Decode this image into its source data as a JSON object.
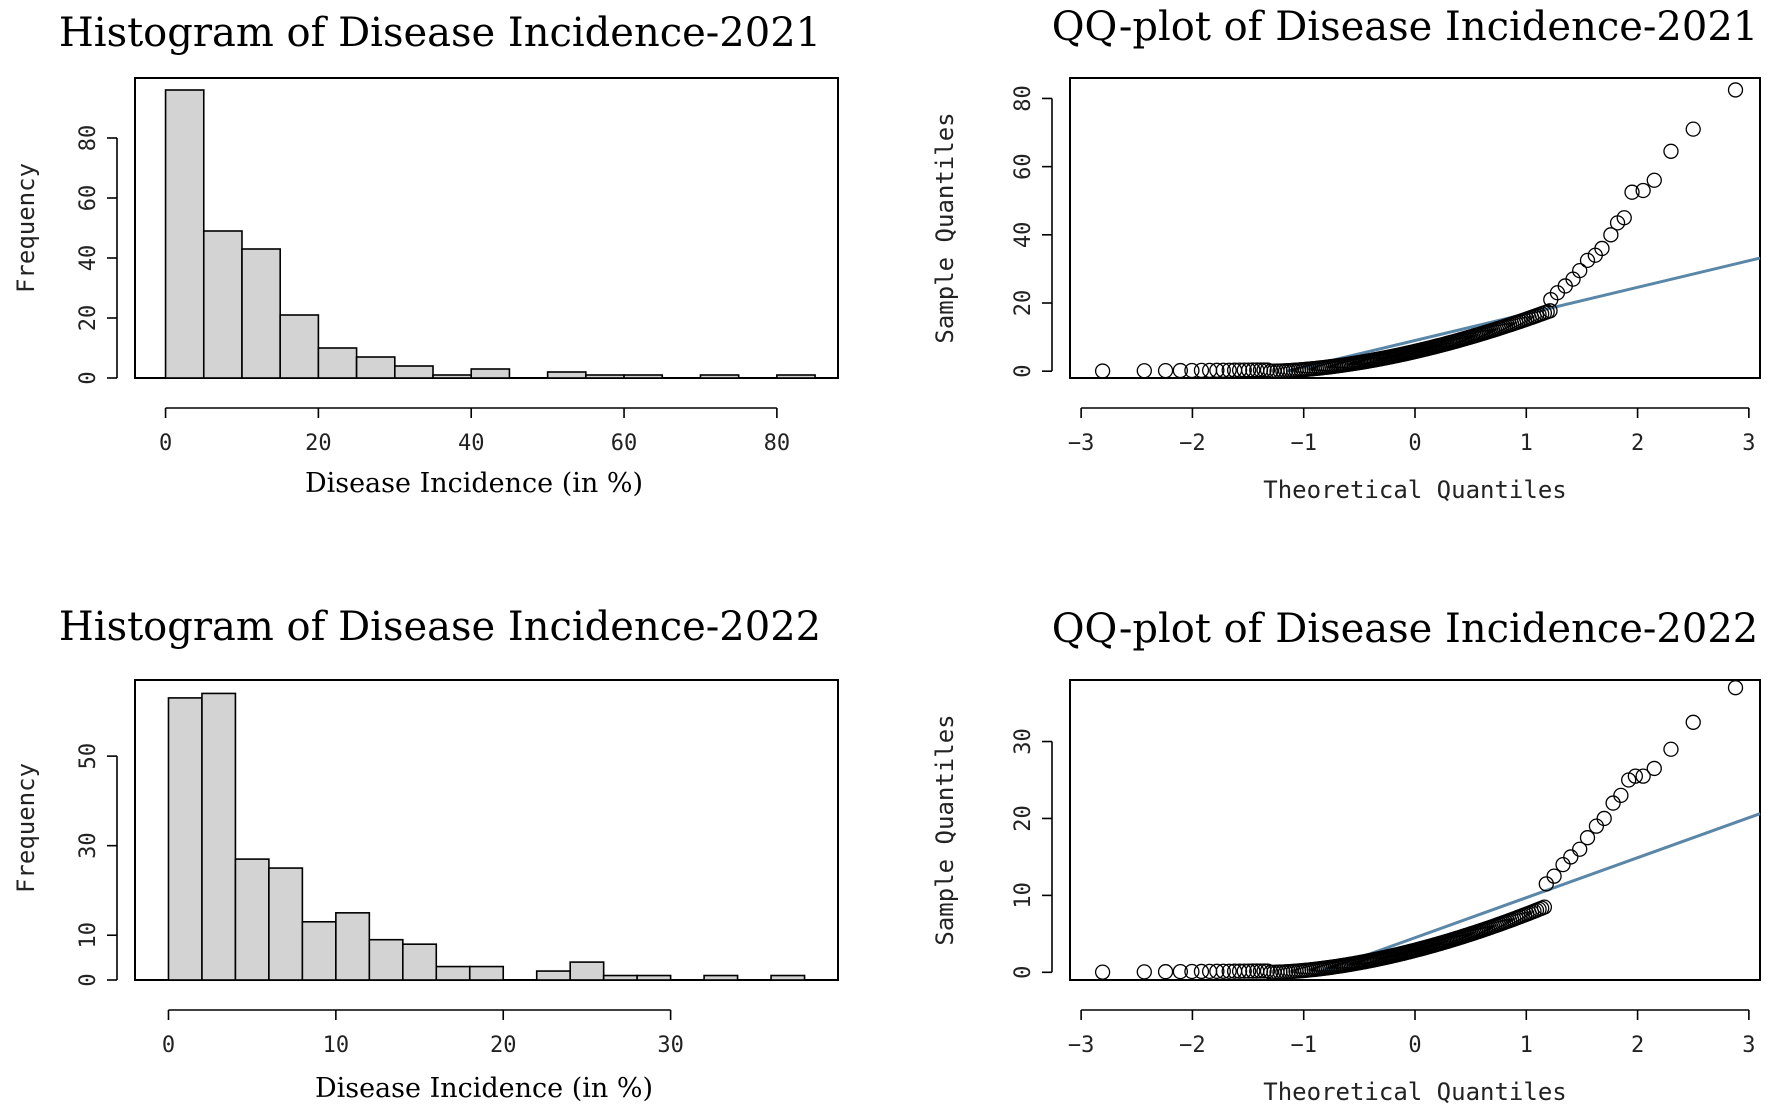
{
  "colors": {
    "bar_fill": "#d3d3d3",
    "ref_line": "#5a87a8",
    "frame": "#000000"
  },
  "chart_data": [
    {
      "type": "bar",
      "subtype": "histogram",
      "title": "Histogram of Disease Incidence-2021",
      "xlabel": "Disease Incidence (in %)",
      "ylabel": "Frequency",
      "bin_edges": [
        0,
        5,
        10,
        15,
        20,
        25,
        30,
        35,
        40,
        45,
        50,
        55,
        60,
        65,
        70,
        75,
        80,
        85
      ],
      "values": [
        96,
        49,
        43,
        21,
        10,
        7,
        4,
        1,
        3,
        0,
        2,
        1,
        1,
        0,
        1,
        0,
        1
      ],
      "xlim": [
        -4,
        88
      ],
      "ylim": [
        0,
        100
      ],
      "xticks": [
        0,
        20,
        40,
        60,
        80
      ],
      "xtick_labels": [
        "0",
        "20",
        "40",
        "60",
        "80"
      ],
      "yticks": [
        0,
        20,
        40,
        60,
        80
      ],
      "ytick_labels": [
        "0",
        "20",
        "40",
        "60",
        "80"
      ]
    },
    {
      "type": "scatter",
      "subtype": "qq-plot",
      "title": "QQ-plot of Disease Incidence-2021",
      "xlabel": "Theoretical Quantiles",
      "ylabel": "Sample Quantiles",
      "xlim": [
        -3.1,
        3.1
      ],
      "ylim": [
        -2,
        86
      ],
      "xticks": [
        -3,
        -2,
        -1,
        0,
        1,
        2,
        3
      ],
      "xtick_labels": [
        "−3",
        "−2",
        "−1",
        "0",
        "1",
        "2",
        "3"
      ],
      "yticks": [
        0,
        20,
        40,
        60,
        80
      ],
      "ytick_labels": [
        "0",
        "20",
        "40",
        "60",
        "80"
      ],
      "sample_mean": 10.5,
      "sample_scale": 18.5,
      "tail_points": [
        [
          2.88,
          82.5
        ],
        [
          2.5,
          71
        ],
        [
          2.3,
          64.5
        ],
        [
          2.15,
          56
        ],
        [
          2.05,
          53
        ],
        [
          1.95,
          52.5
        ],
        [
          1.88,
          45
        ],
        [
          1.82,
          43.5
        ],
        [
          1.76,
          40
        ],
        [
          1.68,
          36
        ],
        [
          1.62,
          34
        ],
        [
          1.55,
          32.5
        ],
        [
          1.48,
          29.5
        ],
        [
          1.42,
          27
        ],
        [
          1.35,
          25
        ],
        [
          1.28,
          23
        ],
        [
          1.22,
          21
        ]
      ],
      "ref_line": {
        "intercept": 9.0,
        "slope": 7.8
      }
    },
    {
      "type": "bar",
      "subtype": "histogram",
      "title": "Histogram of Disease Incidence-2022",
      "xlabel": "Disease Incidence (in %)",
      "ylabel": "Frequency",
      "bin_edges": [
        0,
        2,
        4,
        6,
        8,
        10,
        12,
        14,
        16,
        18,
        20,
        22,
        24,
        26,
        28,
        30,
        32,
        34,
        36,
        38
      ],
      "values": [
        63,
        64,
        27,
        25,
        13,
        15,
        9,
        8,
        3,
        3,
        0,
        2,
        4,
        1,
        1,
        0,
        1,
        0,
        1
      ],
      "xlim": [
        -2,
        40
      ],
      "ylim": [
        0,
        67
      ],
      "xticks": [
        0,
        10,
        20,
        30
      ],
      "xtick_labels": [
        "0",
        "10",
        "20",
        "30"
      ],
      "yticks": [
        0,
        10,
        30,
        50
      ],
      "ytick_labels": [
        "0",
        "10",
        "30",
        "50"
      ]
    },
    {
      "type": "scatter",
      "subtype": "qq-plot",
      "title": "QQ-plot of Disease Incidence-2022",
      "xlabel": "Theoretical Quantiles",
      "ylabel": "Sample Quantiles",
      "xlim": [
        -3.1,
        3.1
      ],
      "ylim": [
        -1,
        38
      ],
      "xticks": [
        -3,
        -2,
        -1,
        0,
        1,
        2,
        3
      ],
      "xtick_labels": [
        "−3",
        "−2",
        "−1",
        "0",
        "1",
        "2",
        "3"
      ],
      "yticks": [
        0,
        10,
        20,
        30
      ],
      "ytick_labels": [
        "0",
        "10",
        "20",
        "30"
      ],
      "sample_mean": 5.2,
      "sample_scale": 8.0,
      "tail_points": [
        [
          2.88,
          37
        ],
        [
          2.5,
          32.5
        ],
        [
          2.3,
          29
        ],
        [
          2.15,
          26.5
        ],
        [
          2.05,
          25.5
        ],
        [
          1.98,
          25.5
        ],
        [
          1.92,
          25
        ],
        [
          1.85,
          23
        ],
        [
          1.78,
          22
        ],
        [
          1.7,
          20
        ],
        [
          1.63,
          19
        ],
        [
          1.55,
          17.5
        ],
        [
          1.48,
          16
        ],
        [
          1.4,
          15
        ],
        [
          1.33,
          14
        ],
        [
          1.25,
          12.5
        ],
        [
          1.18,
          11.5
        ]
      ],
      "ref_line": {
        "intercept": 4.5,
        "slope": 5.2
      }
    }
  ]
}
